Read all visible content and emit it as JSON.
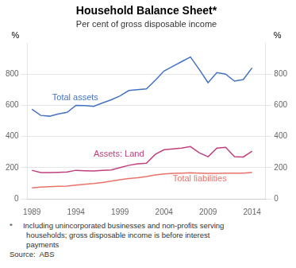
{
  "chart_data": {
    "type": "line",
    "title": "Household Balance Sheet*",
    "subtitle": "Per cent of gross disposable income",
    "ylabel": "%",
    "y2label": "%",
    "x": [
      1989,
      1990,
      1991,
      1992,
      1993,
      1994,
      1995,
      1996,
      1997,
      1998,
      1999,
      2000,
      2001,
      2002,
      2003,
      2004,
      2005,
      2006,
      2007,
      2008,
      2009,
      2010,
      2011,
      2012,
      2013,
      2014
    ],
    "series": [
      {
        "name": "Total assets",
        "color": "#4472C4",
        "values": [
          575,
          535,
          530,
          545,
          555,
          600,
          598,
          593,
          615,
          635,
          660,
          695,
          700,
          705,
          760,
          820,
          850,
          880,
          910,
          830,
          745,
          810,
          800,
          755,
          765,
          840
        ]
      },
      {
        "name": "Assets: Land",
        "color": "#C0417D",
        "values": [
          183,
          168,
          168,
          170,
          172,
          183,
          180,
          178,
          182,
          185,
          200,
          215,
          225,
          228,
          285,
          315,
          320,
          325,
          335,
          295,
          270,
          325,
          330,
          270,
          268,
          305
        ]
      },
      {
        "name": "Total liabilities",
        "color": "#E8736A",
        "values": [
          70,
          75,
          78,
          80,
          82,
          88,
          93,
          98,
          105,
          113,
          122,
          130,
          135,
          143,
          153,
          160,
          163,
          165,
          167,
          165,
          163,
          163,
          165,
          164,
          165,
          170
        ]
      }
    ],
    "xlim": [
      1988.5,
      2015.5
    ],
    "xticks": [
      1989,
      1994,
      1999,
      2004,
      2009,
      2014
    ],
    "ylim": [
      0,
      1000
    ],
    "yticks": [
      0,
      200,
      400,
      600,
      800
    ],
    "y2lim": [
      0,
      1000
    ],
    "y2ticks": [
      0,
      200,
      400,
      600,
      800
    ],
    "grid": "y",
    "annotations": [
      {
        "text": "Total assets",
        "x": 1991.3,
        "y": 635,
        "color": "#4472C4"
      },
      {
        "text": "Assets: Land",
        "x": 1996.0,
        "y": 272,
        "color": "#C0417D"
      },
      {
        "text": "Total liabilities",
        "x": 2005.0,
        "y": 112,
        "color": "#E8736A"
      }
    ],
    "footnote": [
      "*     Including unincorporated businesses and non-profits serving",
      "        households; gross disposable income is before interest",
      "        payments",
      "Source:  ABS"
    ]
  }
}
